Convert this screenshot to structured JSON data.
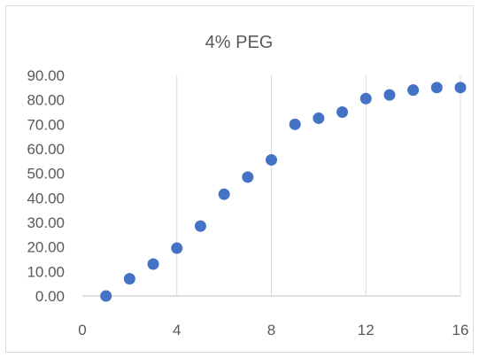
{
  "chart_data": {
    "type": "scatter",
    "title": "4% PEG",
    "xlabel": "",
    "ylabel": "",
    "xlim": [
      0,
      16
    ],
    "ylim": [
      0,
      90
    ],
    "x_ticks": [
      "0",
      "4",
      "8",
      "12",
      "16"
    ],
    "y_ticks": [
      "0.00",
      "10.00",
      "20.00",
      "30.00",
      "40.00",
      "50.00",
      "60.00",
      "70.00",
      "80.00",
      "90.00"
    ],
    "grid": "vertical",
    "legend": "none",
    "marker_color": "#4472c4",
    "series": [
      {
        "x": [
          1,
          2,
          3,
          4,
          5,
          6,
          7,
          8,
          9,
          10,
          11,
          12,
          13,
          14,
          15,
          16
        ],
        "y": [
          0.0,
          7.0,
          13.0,
          19.5,
          28.5,
          41.5,
          48.5,
          55.5,
          70.0,
          72.5,
          75.0,
          80.5,
          82.0,
          84.0,
          85.0,
          85.0
        ]
      }
    ]
  }
}
